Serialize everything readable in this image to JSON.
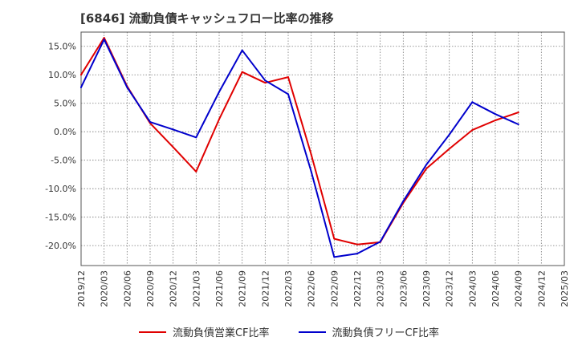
{
  "chart_data": {
    "type": "line",
    "title": "[6846]  流動負債キャッシュフロー比率の推移",
    "x": [
      "2019/12",
      "2020/03",
      "2020/06",
      "2020/09",
      "2020/12",
      "2021/03",
      "2021/06",
      "2021/09",
      "2021/12",
      "2022/03",
      "2022/06",
      "2022/09",
      "2022/12",
      "2023/03",
      "2023/06",
      "2023/09",
      "2023/12",
      "2024/03",
      "2024/06",
      "2024/09",
      "2024/12",
      "2025/03"
    ],
    "xlabel": "",
    "ylabel": "",
    "ylim": [
      -23.5,
      17.5
    ],
    "y_ticks": [
      15,
      10,
      5,
      0,
      -5,
      -10,
      -15,
      -20
    ],
    "y_tick_labels": [
      "15.0%",
      "10.0%",
      "5.0%",
      "0.0%",
      "-5.0%",
      "-10.0%",
      "-15.0%",
      "-20.0%"
    ],
    "grid": true,
    "legend_position": "bottom",
    "series": [
      {
        "name": "流動負債営業CF比率",
        "color": "#e00000",
        "values": [
          10.0,
          16.5,
          8.0,
          1.5,
          -2.7,
          -7.0,
          2.2,
          10.5,
          8.6,
          9.6,
          -4.0,
          -18.8,
          -19.8,
          -19.4,
          -12.5,
          -6.5,
          -3.0,
          0.3,
          2.0,
          3.4,
          null,
          null
        ]
      },
      {
        "name": "流動負債フリーCF比率",
        "color": "#0000cc",
        "values": [
          7.8,
          16.2,
          7.8,
          1.7,
          0.4,
          -1.0,
          7.0,
          14.3,
          9.0,
          6.6,
          -7.0,
          -22.0,
          -21.4,
          -19.3,
          -12.2,
          -5.8,
          -0.5,
          5.2,
          3.1,
          1.3,
          null,
          null
        ]
      }
    ]
  }
}
